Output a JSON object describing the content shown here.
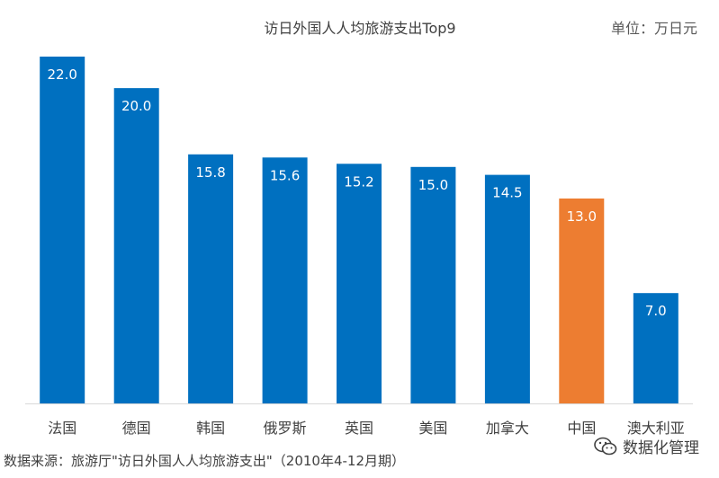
{
  "chart_data": {
    "type": "bar",
    "title": "访日外国人人均旅游支出Top9",
    "unit": "单位：万日元",
    "categories": [
      "法国",
      "德国",
      "韩国",
      "俄罗斯",
      "英国",
      "美国",
      "加拿大",
      "中国",
      "澳大利亚"
    ],
    "values": [
      22.0,
      20.0,
      15.8,
      15.6,
      15.2,
      15.0,
      14.5,
      13.0,
      7.0
    ],
    "value_labels": [
      "22.0",
      "20.0",
      "15.8",
      "15.6",
      "15.2",
      "15.0",
      "14.5",
      "13.0",
      "7.0"
    ],
    "highlight_index": 7,
    "xlabel": "",
    "ylabel": "",
    "ylim": [
      0,
      22.0
    ],
    "grid": false,
    "legend": "none"
  },
  "colors": {
    "bar": "#0070C0",
    "highlight": "#ED7D31",
    "label_text": "#ffffff",
    "axis_text": "#404040",
    "axis_line": "#D9D9D9"
  },
  "footer": {
    "source": "数据来源：旅游厅\"访日外国人人均旅游支出\"（2010年4-12月期）",
    "watermark": "数据化管理",
    "watermark_icon": "wechat-icon"
  }
}
